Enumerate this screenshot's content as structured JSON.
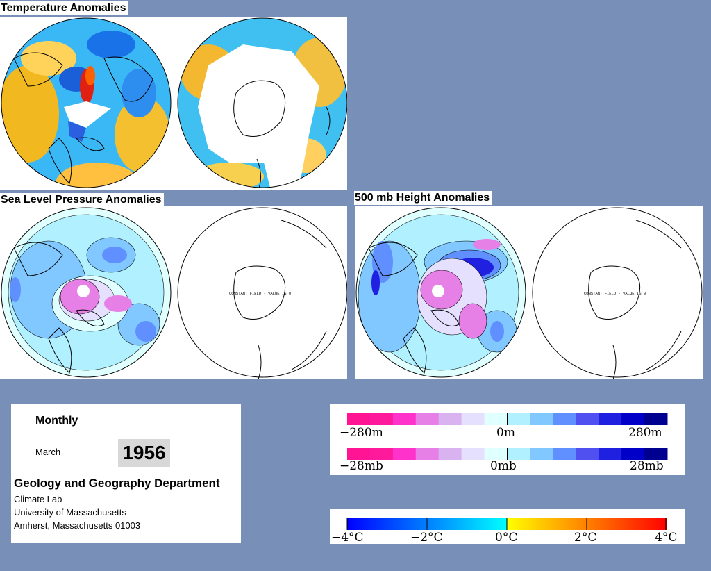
{
  "titles": {
    "temperature": "Temperature Anomalies",
    "slp": "Sea Level Pressure Anomalies",
    "height": "500 mb Height Anomalies"
  },
  "maps": {
    "constant_field_label": "CONSTANT FIELD - VALUE IS 0"
  },
  "info": {
    "period": "Monthly",
    "month": "March",
    "year": "1956",
    "department": "Geology and Geography Department",
    "address_lines": [
      "Climate Lab",
      "University of Massachusetts",
      "Amherst, Massachusetts 01003"
    ]
  },
  "legends": {
    "height": {
      "labels": [
        "−280m",
        "0m",
        "280m"
      ],
      "colors": [
        "#ff1493",
        "#ff1a9c",
        "#ff33cc",
        "#e680e6",
        "#d9b3f0",
        "#e6e0ff",
        "#e0ffff",
        "#b0f0ff",
        "#80c8ff",
        "#6090ff",
        "#5050f0",
        "#2020e0",
        "#0000c8",
        "#000090"
      ]
    },
    "pressure": {
      "labels": [
        "−28mb",
        "0mb",
        "28mb"
      ],
      "colors": [
        "#ff1493",
        "#ff1a9c",
        "#ff33cc",
        "#e680e6",
        "#d9b3f0",
        "#e6e0ff",
        "#e0ffff",
        "#b0f0ff",
        "#80c8ff",
        "#6090ff",
        "#5050f0",
        "#2020e0",
        "#0000c8",
        "#000090"
      ]
    },
    "temperature": {
      "labels": [
        "−4°C",
        "−2°C",
        "0°C",
        "2°C",
        "4°C"
      ],
      "colors": [
        "#0000ff",
        "#00ffff",
        "#ffff00",
        "#ff0000"
      ]
    }
  }
}
